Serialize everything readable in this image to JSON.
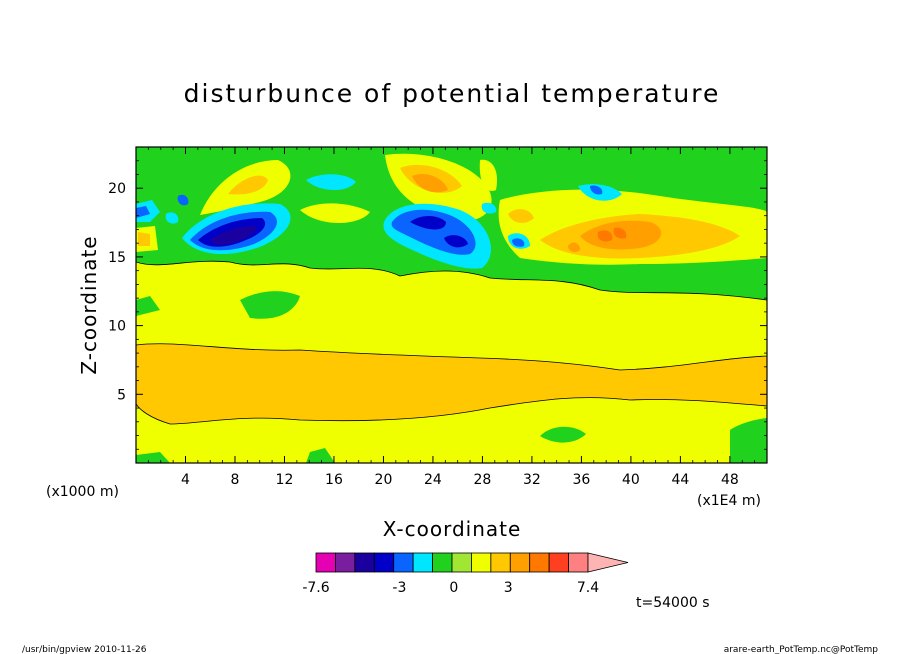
{
  "chart_data": {
    "type": "heatmap",
    "title": "disturbunce of potential temperature",
    "xlabel": "X-coordinate",
    "ylabel": "Z-coordinate",
    "x_unit_left": "(x1000 m)",
    "x_unit_right": "(x1E4 m)",
    "xlim": [
      0,
      51
    ],
    "ylim": [
      0,
      23
    ],
    "xticks": [
      "4",
      "8",
      "12",
      "16",
      "20",
      "24",
      "28",
      "32",
      "36",
      "40",
      "44",
      "48"
    ],
    "xtick_values": [
      4,
      8,
      12,
      16,
      20,
      24,
      28,
      32,
      36,
      40,
      44,
      48
    ],
    "yticks": [
      "5",
      "10",
      "15",
      "20"
    ],
    "ytick_values": [
      5,
      10,
      15,
      20
    ],
    "colorbar": {
      "colors": [
        "#e600b4",
        "#7a1ea0",
        "#1b00a0",
        "#0000c8",
        "#0a64ff",
        "#00e6ff",
        "#20d21e",
        "#a0e632",
        "#f0ff00",
        "#ffc800",
        "#ffa000",
        "#ff7800",
        "#ff4020",
        "#ff8080",
        "#ffb4b4"
      ],
      "levels": [
        -7.6,
        -3,
        0,
        3,
        7.4
      ],
      "labels": [
        "-7.6",
        "-3",
        "0",
        "3",
        "7.4"
      ]
    },
    "time_label": "t=54000 s",
    "bands": [
      {
        "level": "light-yellow",
        "color": "#f0ff00",
        "z_range": [
          0,
          11
        ]
      },
      {
        "level": "orange",
        "color": "#ffc800",
        "z_range": [
          4,
          9
        ]
      },
      {
        "level": "green",
        "color": "#20d21e",
        "z_range": [
          12,
          23
        ]
      }
    ],
    "blobs": [
      {
        "x": 8.5,
        "z": 16.7,
        "value": -6
      },
      {
        "x": 24.5,
        "z": 16.9,
        "value": -5
      },
      {
        "x": 30.5,
        "z": 15.7,
        "value": -3
      },
      {
        "x": 0.8,
        "z": 18.1,
        "value": -3
      },
      {
        "x": 16.0,
        "z": 20.0,
        "value": -2
      },
      {
        "x": 38.5,
        "z": 16.5,
        "value": 4
      },
      {
        "x": 23.5,
        "z": 19.5,
        "value": 3
      },
      {
        "x": 8.5,
        "z": 20.0,
        "value": 2
      },
      {
        "x": 36.5,
        "z": 20.0,
        "value": -2
      }
    ]
  },
  "footer": {
    "left": "/usr/bin/gpview  2010-11-26",
    "right": "arare-earth_PotTemp.nc@PotTemp"
  }
}
